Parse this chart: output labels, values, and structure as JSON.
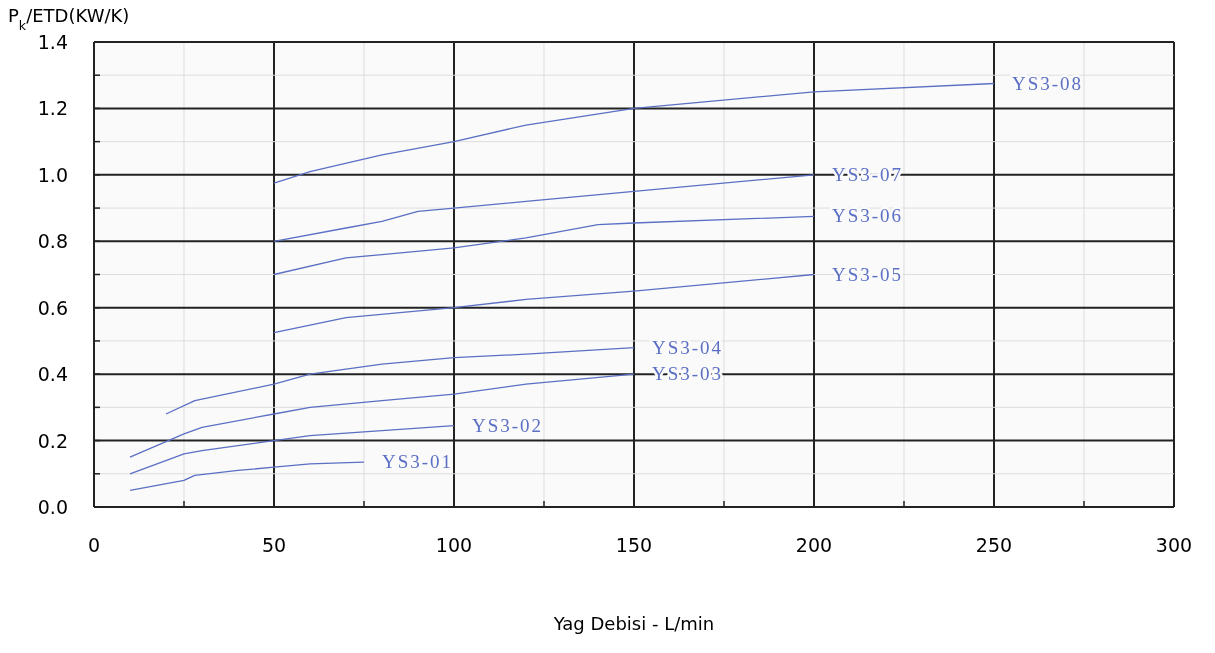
{
  "chart_data": {
    "type": "line",
    "xlabel": "Yag Debisi - L/min",
    "ylabel": "P$_{k}$/ETD(KW/K)",
    "xlim": [
      0,
      300
    ],
    "ylim": [
      0,
      1.4
    ],
    "xticks": [
      0,
      {
        "value": 25,
        "label": null
      },
      50,
      {
        "value": 75,
        "label": null
      },
      100,
      {
        "value": 125,
        "label": null
      },
      150,
      {
        "value": 175,
        "label": null
      },
      200,
      {
        "value": 225,
        "label": null
      },
      250,
      {
        "value": 275,
        "label": null
      },
      {
        "value": 300,
        "label": "300"
      }
    ],
    "yticks": [
      {
        "value": 0,
        "label": "0.0"
      },
      {
        "value": 0.1,
        "label": null
      },
      0.2,
      {
        "value": 0.3,
        "label": null
      },
      0.4,
      {
        "value": 0.5,
        "label": null
      },
      0.6,
      {
        "value": 0.7,
        "label": null
      },
      0.8,
      {
        "value": 0.9,
        "label": null
      },
      {
        "value": 1.0,
        "label": "1.0"
      },
      {
        "value": 1.1,
        "label": null
      },
      1.2,
      {
        "value": 1.3,
        "label": null
      },
      1.4
    ],
    "grid": true,
    "marker": "none",
    "line_style": "solid",
    "series": [
      {
        "name": "YS3-01",
        "color": "#5b6fc4",
        "x": [
          10,
          25,
          28,
          40,
          50,
          60,
          75
        ],
        "values": [
          0.05,
          0.08,
          0.095,
          0.11,
          0.12,
          0.13,
          0.135
        ]
      },
      {
        "name": "YS3-02",
        "color": "#5b6fc4",
        "x": [
          10,
          25,
          30,
          50,
          60,
          80,
          100
        ],
        "values": [
          0.1,
          0.16,
          0.17,
          0.2,
          0.215,
          0.23,
          0.245
        ]
      },
      {
        "name": "YS3-03",
        "color": "#5b6fc4",
        "x": [
          10,
          25,
          30,
          50,
          60,
          80,
          100,
          120,
          150
        ],
        "values": [
          0.15,
          0.22,
          0.24,
          0.28,
          0.3,
          0.32,
          0.34,
          0.37,
          0.4
        ]
      },
      {
        "name": "YS3-04",
        "color": "#5b6fc4",
        "x": [
          20,
          28,
          50,
          60,
          80,
          100,
          120,
          150
        ],
        "values": [
          0.28,
          0.32,
          0.37,
          0.4,
          0.43,
          0.45,
          0.46,
          0.48
        ]
      },
      {
        "name": "YS3-05",
        "color": "#5b6fc4",
        "x": [
          50,
          70,
          100,
          120,
          150,
          200
        ],
        "values": [
          0.525,
          0.57,
          0.6,
          0.625,
          0.65,
          0.7
        ]
      },
      {
        "name": "YS3-06",
        "color": "#5b6fc4",
        "x": [
          50,
          70,
          80,
          100,
          120,
          140,
          150,
          200
        ],
        "values": [
          0.7,
          0.75,
          0.76,
          0.78,
          0.81,
          0.85,
          0.855,
          0.875
        ]
      },
      {
        "name": "YS3-07",
        "color": "#5b6fc4",
        "x": [
          50,
          70,
          80,
          90,
          100,
          120,
          150,
          200
        ],
        "values": [
          0.8,
          0.84,
          0.86,
          0.89,
          0.9,
          0.92,
          0.95,
          1.0
        ]
      },
      {
        "name": "YS3-08",
        "color": "#5b6fc4",
        "x": [
          50,
          60,
          80,
          100,
          120,
          150,
          200,
          250
        ],
        "values": [
          0.975,
          1.01,
          1.06,
          1.1,
          1.15,
          1.2,
          1.25,
          1.275
        ]
      }
    ]
  }
}
